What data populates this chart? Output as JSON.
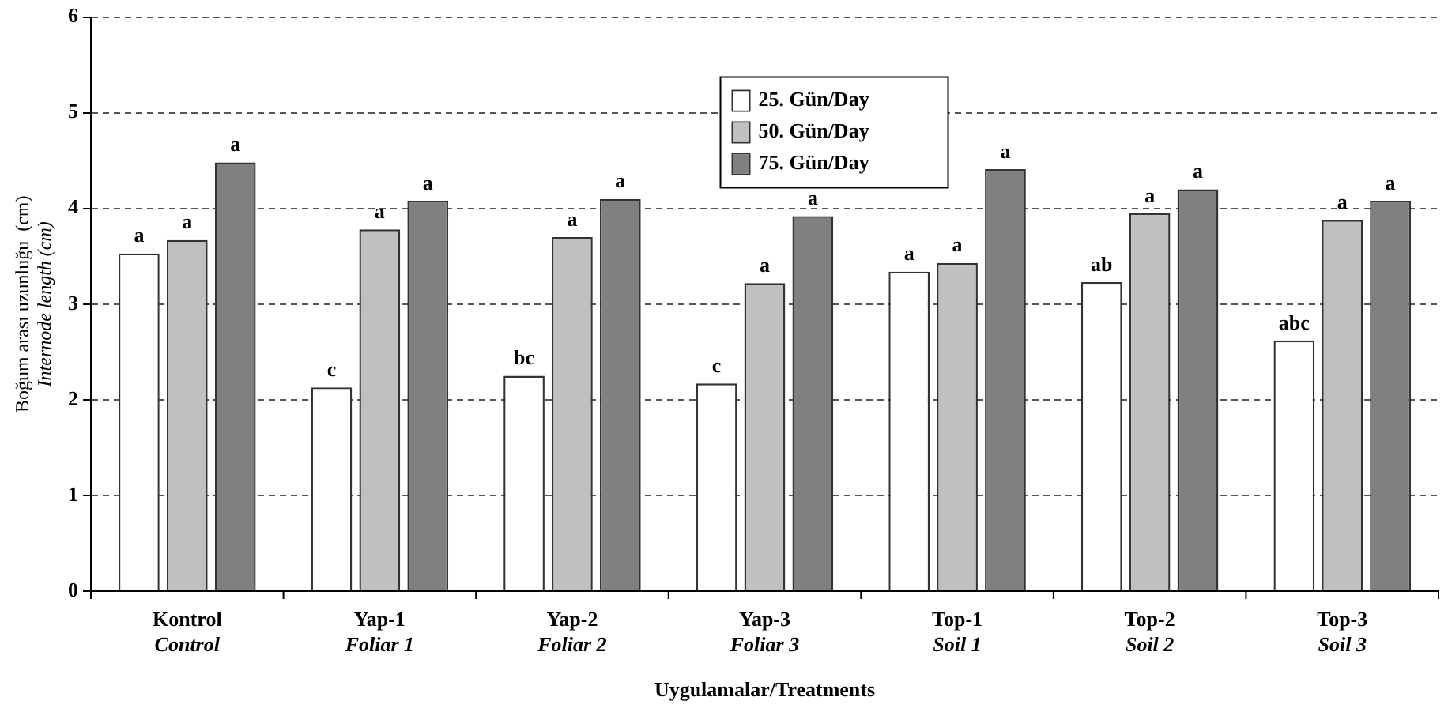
{
  "chart_data": {
    "type": "bar",
    "xlabel": "Uygulamalar/Treatments",
    "ylabel": "Boğum arası uzunluğu  (cm)\nInternode length (cm)",
    "categories": [
      "Kontrol\nControl",
      "Yap-1\nFoliar 1",
      "Yap-2\nFoliar 2",
      "Yap-3\nFoliar 3",
      "Top-1\nSoil 1",
      "Top-2\nSoil 2",
      "Top-3\nSoil 3"
    ],
    "series": [
      {
        "name": "25. Gün/Day",
        "color": "#ffffff",
        "values": [
          3.53,
          2.13,
          2.25,
          2.17,
          3.34,
          3.23,
          2.62
        ],
        "value_labels": [
          "a",
          "c",
          "bc",
          "c",
          "a",
          "ab",
          "abc"
        ]
      },
      {
        "name": "50. Gün/Day",
        "color": "#c0c0c0",
        "values": [
          3.67,
          3.78,
          3.7,
          3.22,
          3.43,
          3.95,
          3.88
        ],
        "value_labels": [
          "a",
          "a",
          "a",
          "a",
          "a",
          "a",
          "a"
        ]
      },
      {
        "name": "75. Gün/Day",
        "color": "#808080",
        "values": [
          4.48,
          4.08,
          4.1,
          3.92,
          4.41,
          4.2,
          4.08
        ],
        "value_labels": [
          "a",
          "a",
          "a",
          "a",
          "a",
          "a",
          "a"
        ]
      }
    ],
    "ylim": [
      0,
      6
    ],
    "yticks": [
      0,
      1,
      2,
      3,
      4,
      5,
      6
    ],
    "grid": "y",
    "legend": "top"
  }
}
